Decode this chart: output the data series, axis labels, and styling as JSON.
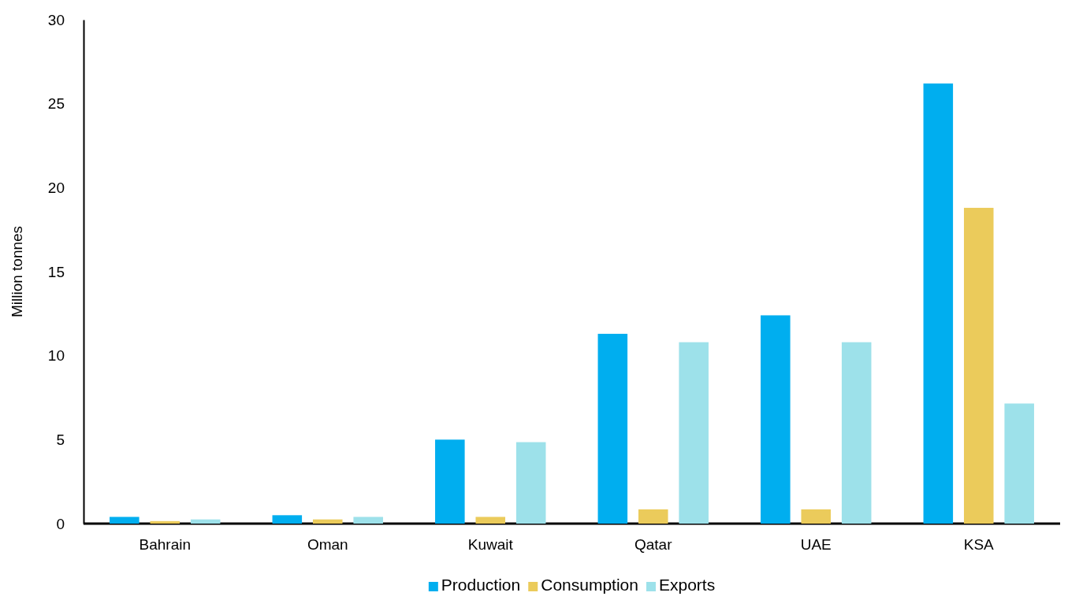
{
  "chart_data": {
    "type": "bar",
    "ylabel": "Million tonnes",
    "categories": [
      "Bahrain",
      "Oman",
      "Kuwait",
      "Qatar",
      "UAE",
      "KSA"
    ],
    "series": [
      {
        "name": "Production",
        "color": "#00aeef",
        "values": [
          0.4,
          0.5,
          5.0,
          11.3,
          12.4,
          26.2
        ]
      },
      {
        "name": "Consumption",
        "color": "#ebcb5b",
        "values": [
          0.15,
          0.25,
          0.4,
          0.85,
          0.85,
          18.8
        ]
      },
      {
        "name": "Exports",
        "color": "#9de1ea",
        "values": [
          0.25,
          0.4,
          4.85,
          10.8,
          10.8,
          7.15
        ]
      }
    ],
    "ylim": [
      0,
      30
    ],
    "yticks": [
      0,
      5,
      10,
      15,
      20,
      25,
      30
    ],
    "grid": false,
    "legend": "bottom"
  }
}
